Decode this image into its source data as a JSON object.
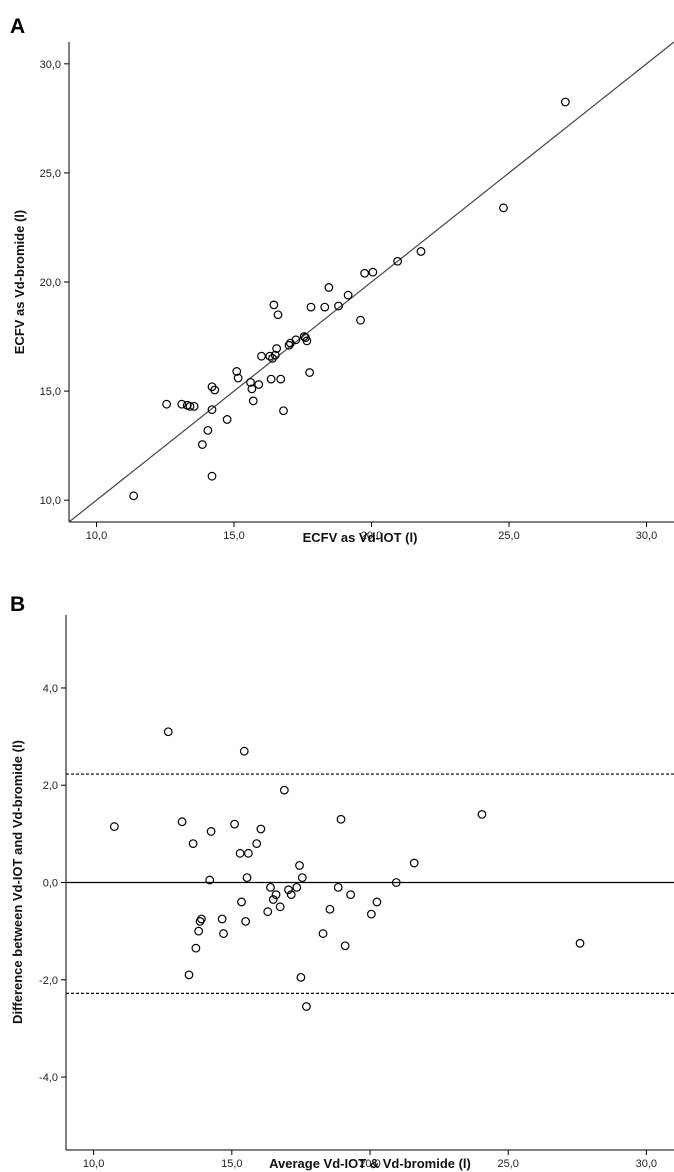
{
  "chart_data": [
    {
      "panel": "A",
      "type": "scatter",
      "xlabel": "ECFV as Vd-IOT (l)",
      "ylabel": "ECFV as Vd-bromide (l)",
      "xlim": [
        9.0,
        31.0
      ],
      "ylim": [
        9.0,
        31.0
      ],
      "xticks": [
        "10,0",
        "15,0",
        "20,0",
        "25,0",
        "30,0"
      ],
      "yticks": [
        "10,0",
        "15,0",
        "20,0",
        "25,0",
        "30,0"
      ],
      "xtick_values": [
        10,
        15,
        20,
        25,
        30
      ],
      "ytick_values": [
        10,
        15,
        20,
        25,
        30
      ],
      "reference_line": "identity (y = x)",
      "points": [
        {
          "x": 11.35,
          "y": 10.2
        },
        {
          "x": 12.55,
          "y": 14.4
        },
        {
          "x": 13.1,
          "y": 14.4
        },
        {
          "x": 13.3,
          "y": 14.35
        },
        {
          "x": 13.4,
          "y": 14.3
        },
        {
          "x": 13.55,
          "y": 14.3
        },
        {
          "x": 13.85,
          "y": 12.55
        },
        {
          "x": 14.05,
          "y": 13.2
        },
        {
          "x": 14.2,
          "y": 14.15
        },
        {
          "x": 14.2,
          "y": 15.2
        },
        {
          "x": 14.3,
          "y": 15.05
        },
        {
          "x": 14.2,
          "y": 11.1
        },
        {
          "x": 14.75,
          "y": 13.7
        },
        {
          "x": 15.1,
          "y": 15.9
        },
        {
          "x": 15.15,
          "y": 15.6
        },
        {
          "x": 15.6,
          "y": 15.4
        },
        {
          "x": 15.65,
          "y": 15.1
        },
        {
          "x": 15.7,
          "y": 14.55
        },
        {
          "x": 15.9,
          "y": 15.3
        },
        {
          "x": 16.0,
          "y": 16.6
        },
        {
          "x": 16.3,
          "y": 16.6
        },
        {
          "x": 16.35,
          "y": 15.55
        },
        {
          "x": 16.4,
          "y": 16.5
        },
        {
          "x": 16.45,
          "y": 18.95
        },
        {
          "x": 16.5,
          "y": 16.65
        },
        {
          "x": 16.55,
          "y": 16.95
        },
        {
          "x": 16.6,
          "y": 18.5
        },
        {
          "x": 16.7,
          "y": 15.55
        },
        {
          "x": 16.8,
          "y": 14.1
        },
        {
          "x": 17.0,
          "y": 17.1
        },
        {
          "x": 17.05,
          "y": 17.2
        },
        {
          "x": 17.25,
          "y": 17.35
        },
        {
          "x": 17.55,
          "y": 17.5
        },
        {
          "x": 17.6,
          "y": 17.45
        },
        {
          "x": 17.65,
          "y": 17.3
        },
        {
          "x": 17.75,
          "y": 15.85
        },
        {
          "x": 17.8,
          "y": 18.85
        },
        {
          "x": 18.3,
          "y": 18.85
        },
        {
          "x": 18.45,
          "y": 19.75
        },
        {
          "x": 18.8,
          "y": 18.9
        },
        {
          "x": 19.15,
          "y": 19.4
        },
        {
          "x": 19.6,
          "y": 18.25
        },
        {
          "x": 19.75,
          "y": 20.4
        },
        {
          "x": 20.05,
          "y": 20.45
        },
        {
          "x": 20.95,
          "y": 20.95
        },
        {
          "x": 21.8,
          "y": 21.4
        },
        {
          "x": 24.8,
          "y": 23.4
        },
        {
          "x": 27.05,
          "y": 28.25
        }
      ]
    },
    {
      "panel": "B",
      "type": "scatter",
      "xlabel": "Average Vd-IOT & Vd-bromide (l)",
      "ylabel": "Difference between Vd-IOT and Vd-bromide (l)",
      "xlim": [
        9.0,
        31.0
      ],
      "ylim": [
        -5.5,
        5.5
      ],
      "xticks": [
        "10,0",
        "15,0",
        "20,0",
        "25,0",
        "30,0"
      ],
      "yticks": [
        "-4,0",
        "-2,0",
        "0,0",
        "2,0",
        "4,0"
      ],
      "xtick_values": [
        10,
        15,
        20,
        25,
        30
      ],
      "ytick_values": [
        -4,
        -2,
        0,
        2,
        4
      ],
      "mean_difference": 0.0,
      "limits_of_agreement": [
        -2.28,
        2.23
      ],
      "points": [
        {
          "x": 10.75,
          "y": 1.15
        },
        {
          "x": 12.7,
          "y": 3.1
        },
        {
          "x": 13.2,
          "y": 1.25
        },
        {
          "x": 13.45,
          "y": -1.9
        },
        {
          "x": 13.6,
          "y": 0.8
        },
        {
          "x": 13.7,
          "y": -1.35
        },
        {
          "x": 13.8,
          "y": -1.0
        },
        {
          "x": 13.85,
          "y": -0.8
        },
        {
          "x": 13.9,
          "y": -0.75
        },
        {
          "x": 14.2,
          "y": 0.05
        },
        {
          "x": 14.25,
          "y": 1.05
        },
        {
          "x": 14.65,
          "y": -0.75
        },
        {
          "x": 14.7,
          "y": -1.05
        },
        {
          "x": 15.1,
          "y": 1.2
        },
        {
          "x": 15.3,
          "y": 0.6
        },
        {
          "x": 15.35,
          "y": -0.4
        },
        {
          "x": 15.45,
          "y": 2.7
        },
        {
          "x": 15.5,
          "y": -0.8
        },
        {
          "x": 15.55,
          "y": 0.1
        },
        {
          "x": 15.6,
          "y": 0.6
        },
        {
          "x": 15.9,
          "y": 0.8
        },
        {
          "x": 16.05,
          "y": 1.1
        },
        {
          "x": 16.3,
          "y": -0.6
        },
        {
          "x": 16.4,
          "y": -0.1
        },
        {
          "x": 16.5,
          "y": -0.35
        },
        {
          "x": 16.6,
          "y": -0.25
        },
        {
          "x": 16.75,
          "y": -0.5
        },
        {
          "x": 16.9,
          "y": 1.9
        },
        {
          "x": 17.05,
          "y": -0.15
        },
        {
          "x": 17.15,
          "y": -0.25
        },
        {
          "x": 17.35,
          "y": -0.1
        },
        {
          "x": 17.45,
          "y": 0.35
        },
        {
          "x": 17.5,
          "y": -1.95
        },
        {
          "x": 17.55,
          "y": 0.1
        },
        {
          "x": 17.7,
          "y": -2.55
        },
        {
          "x": 18.3,
          "y": -1.05
        },
        {
          "x": 18.55,
          "y": -0.55
        },
        {
          "x": 18.85,
          "y": -0.1
        },
        {
          "x": 18.95,
          "y": 1.3
        },
        {
          "x": 19.1,
          "y": -1.3
        },
        {
          "x": 19.3,
          "y": -0.25
        },
        {
          "x": 20.05,
          "y": -0.65
        },
        {
          "x": 20.25,
          "y": -0.4
        },
        {
          "x": 20.95,
          "y": 0.0
        },
        {
          "x": 21.6,
          "y": 0.4
        },
        {
          "x": 24.05,
          "y": 1.4
        },
        {
          "x": 27.6,
          "y": -1.25
        }
      ]
    }
  ],
  "panels": {
    "a_letter": "A",
    "b_letter": "B"
  }
}
